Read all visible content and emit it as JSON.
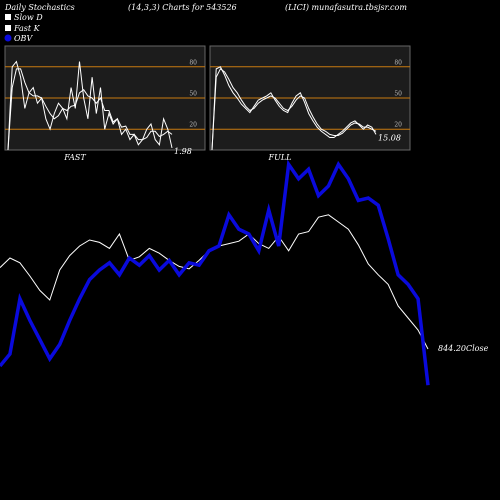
{
  "header": {
    "title": "Daily Stochastics",
    "subtitle": "(14,3,3) Charts for 543526",
    "source": "(LICI) munafasutra.tbsjsr.com"
  },
  "chart_data": [
    {
      "type": "line",
      "title": "FAST",
      "ylim": [
        0,
        100
      ],
      "yticks": [
        20,
        50,
        80
      ],
      "grid": true,
      "grid_color": "#c87a10",
      "series": [
        {
          "name": "Slow D",
          "color": "#ffffff",
          "values": [
            0,
            60,
            78,
            78,
            65,
            55,
            52,
            52,
            50,
            42,
            35,
            30,
            33,
            40,
            38,
            42,
            43,
            55,
            58,
            52,
            50,
            45,
            50,
            38,
            38,
            27,
            30,
            22,
            23,
            15,
            15,
            10,
            10,
            12,
            18,
            18,
            13,
            15,
            18,
            15
          ]
        },
        {
          "name": "Fast K",
          "color": "#ffffff",
          "values": [
            0,
            80,
            85,
            70,
            40,
            55,
            60,
            45,
            50,
            30,
            20,
            35,
            45,
            40,
            30,
            60,
            40,
            85,
            50,
            30,
            70,
            35,
            60,
            20,
            35,
            25,
            30,
            15,
            20,
            10,
            15,
            5,
            10,
            20,
            25,
            10,
            5,
            30,
            20,
            1.98
          ],
          "last_label": "1.98"
        }
      ]
    },
    {
      "type": "line",
      "title": "FULL",
      "ylim": [
        0,
        100
      ],
      "yticks": [
        20,
        50,
        80
      ],
      "grid": true,
      "grid_color": "#c87a10",
      "series": [
        {
          "name": "Slow D",
          "color": "#ffffff",
          "values": [
            0,
            70,
            78,
            75,
            68,
            60,
            55,
            48,
            42,
            38,
            40,
            45,
            48,
            50,
            52,
            50,
            45,
            40,
            38,
            42,
            48,
            52,
            50,
            40,
            32,
            25,
            20,
            18,
            15,
            14,
            14,
            16,
            20,
            24,
            26,
            25,
            22,
            22,
            20,
            18
          ]
        },
        {
          "name": "Fast K",
          "color": "#ffffff",
          "values": [
            0,
            78,
            80,
            72,
            62,
            55,
            50,
            44,
            40,
            36,
            42,
            48,
            50,
            52,
            55,
            48,
            42,
            38,
            36,
            45,
            52,
            55,
            46,
            35,
            28,
            22,
            18,
            15,
            12,
            12,
            15,
            18,
            22,
            26,
            28,
            24,
            20,
            24,
            22,
            15.08
          ],
          "last_label": "15.08"
        }
      ]
    },
    {
      "type": "line",
      "ylim": [
        810,
        1010
      ],
      "y2lim": [
        0,
        100
      ],
      "series": [
        {
          "name": "Close",
          "color": "#ffffff",
          "values": [
            912,
            920,
            916,
            905,
            893,
            885,
            910,
            922,
            930,
            935,
            933,
            928,
            940,
            918,
            921,
            928,
            924,
            918,
            913,
            911,
            918,
            926,
            930,
            932,
            934,
            940,
            932,
            928,
            938,
            926,
            940,
            942,
            954,
            956,
            950,
            944,
            931,
            915,
            906,
            898,
            880,
            870,
            860,
            844.2
          ],
          "last_label": "844.20"
        },
        {
          "name": "OBV",
          "color": "#0a0adc",
          "axis": "y2",
          "values": [
            10,
            15,
            38,
            29,
            21,
            13,
            19,
            29,
            38,
            46,
            50,
            53,
            48,
            55,
            52,
            56,
            50,
            54,
            48,
            53,
            52,
            58,
            60,
            73,
            67,
            65,
            58,
            75,
            60,
            94,
            88,
            92,
            81,
            85,
            94,
            88,
            79,
            80,
            77,
            63,
            48,
            44,
            38,
            2
          ]
        }
      ]
    }
  ]
}
